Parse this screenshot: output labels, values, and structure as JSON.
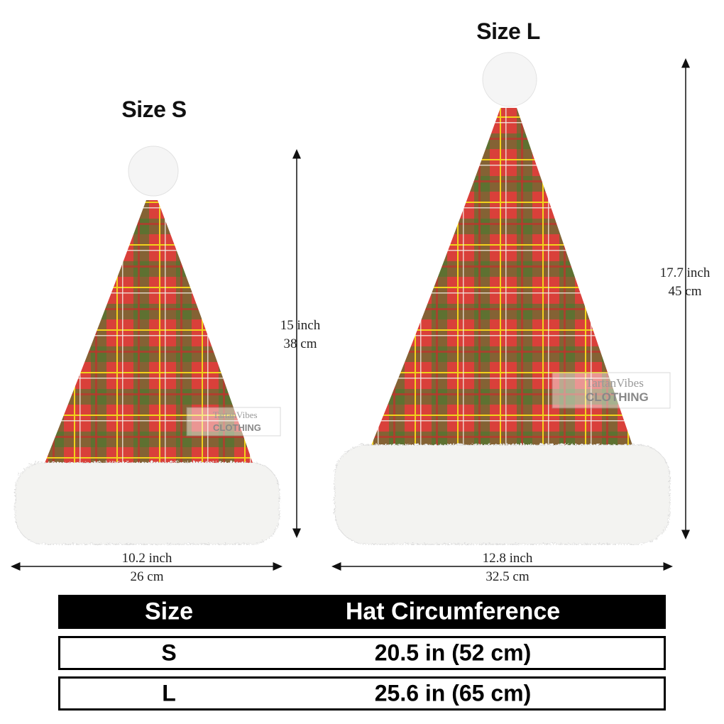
{
  "sizes": [
    {
      "title": "Size S",
      "height_inch": "15 inch",
      "height_cm": "38 cm",
      "width_inch": "10.2 inch",
      "width_cm": "26 cm"
    },
    {
      "title": "Size L",
      "height_inch": "17.7 inch",
      "height_cm": "45 cm",
      "width_inch": "12.8 inch",
      "width_cm": "32.5 cm"
    }
  ],
  "watermark": {
    "line1": "TartanVibes",
    "line2": "CLOTHING"
  },
  "table": {
    "headers": [
      "Size",
      "Hat Circumference"
    ],
    "rows": [
      [
        "S",
        "20.5 in (52 cm)"
      ],
      [
        "L",
        "25.6 in (65 cm)"
      ]
    ]
  },
  "colors": {
    "tartan_red": "#d9403a",
    "tartan_green": "#3e7d2f",
    "tartan_yellow": "#f2d21b",
    "fur": "#f3f3f1",
    "header_bg": "#000000"
  }
}
